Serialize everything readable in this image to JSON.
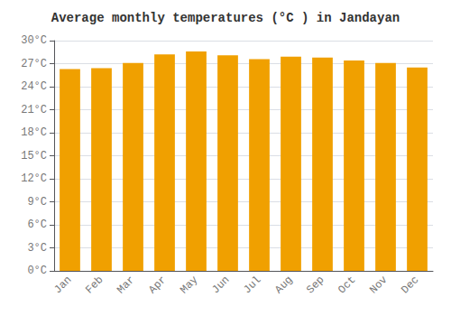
{
  "chart_data": {
    "type": "bar",
    "title": "Average monthly temperatures (°C ) in Jandayan",
    "categories": [
      "Jan",
      "Feb",
      "Mar",
      "Apr",
      "May",
      "Jun",
      "Jul",
      "Aug",
      "Sep",
      "Oct",
      "Nov",
      "Dec"
    ],
    "values": [
      26.3,
      26.4,
      27.1,
      28.2,
      28.6,
      28.1,
      27.6,
      27.9,
      27.8,
      27.4,
      27.1,
      26.5
    ],
    "color": "#F0A000",
    "ylim": [
      0,
      30
    ],
    "yticks": [
      {
        "value": 0,
        "label": "0°C"
      },
      {
        "value": 3,
        "label": "3°C"
      },
      {
        "value": 6,
        "label": "6°C"
      },
      {
        "value": 9,
        "label": "9°C"
      },
      {
        "value": 12,
        "label": "12°C"
      },
      {
        "value": 15,
        "label": "15°C"
      },
      {
        "value": 18,
        "label": "18°C"
      },
      {
        "value": 21,
        "label": "21°C"
      },
      {
        "value": 24,
        "label": "24°C"
      },
      {
        "value": 27,
        "label": "27°C"
      },
      {
        "value": 30,
        "label": "30°C"
      }
    ],
    "grid": true
  }
}
